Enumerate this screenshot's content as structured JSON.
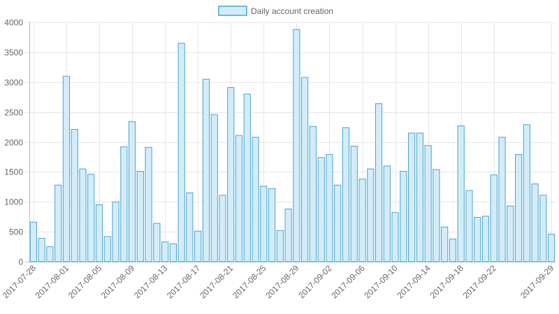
{
  "chart_data": {
    "type": "bar",
    "legend": {
      "position": "top",
      "entries": [
        "Daily account creation"
      ]
    },
    "series": [
      {
        "name": "Daily account creation",
        "color_fill": "#d4ecf9",
        "color_border": "#47a6cf",
        "values": [
          660,
          390,
          250,
          1280,
          3100,
          2210,
          1550,
          1460,
          950,
          420,
          1000,
          1920,
          2340,
          1510,
          1910,
          640,
          330,
          300,
          3650,
          1150,
          510,
          3050,
          2460,
          1110,
          2910,
          2110,
          2800,
          2080,
          1260,
          1220,
          520,
          880,
          3880,
          3080,
          2260,
          1740,
          1790,
          1280,
          2240,
          1930,
          1380,
          1550,
          2640,
          1600,
          820,
          1510,
          2150,
          2150,
          1940,
          1540,
          580,
          380,
          2270,
          1190,
          740,
          760,
          1450,
          2080,
          930,
          1790,
          2290,
          1300,
          1110,
          460
        ]
      }
    ],
    "x_start": "2017-07-28",
    "x_end": "2017-09-29",
    "x_tick_labels": [
      "2017-07-28",
      "2017-08-01",
      "2017-08-05",
      "2017-08-09",
      "2017-08-13",
      "2017-08-17",
      "2017-08-21",
      "2017-08-25",
      "2017-08-29",
      "2017-09-02",
      "2017-09-06",
      "2017-09-10",
      "2017-09-14",
      "2017-09-18",
      "2017-09-22",
      "2017-09-29"
    ],
    "y_ticks": [
      0,
      500,
      1000,
      1500,
      2000,
      2500,
      3000,
      3500,
      4000
    ],
    "ylim": [
      0,
      4000
    ],
    "grid": true
  }
}
